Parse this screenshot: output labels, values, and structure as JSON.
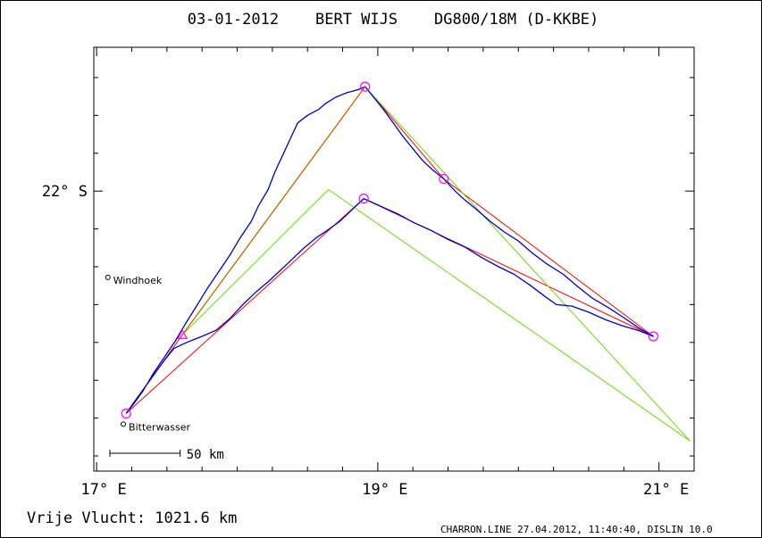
{
  "header": {
    "title": "03-01-2012    BERT WIJS    DG800/18M (D-KKBE)"
  },
  "footer": {
    "distance": "Vrije Vlucht: 1021.6 km",
    "credit": "CHARRON.LINE 27.04.2012, 11:40:40, DISLIN 10.0"
  },
  "colors": {
    "track": "#0000cc",
    "flight_legs": "#ff0000",
    "task_legs": "#66dd00",
    "turnpoints": "#ff00ff",
    "outbound_leg": "#cc6600"
  },
  "chart_data": {
    "type": "line",
    "title": "03-01-2012    BERT WIJS    DG800/18M (D-KKBE)",
    "xlabel": "",
    "ylabel": "",
    "xlim": [
      16.98,
      21.25
    ],
    "ylim": [
      -23.85,
      -21.05
    ],
    "grid": false,
    "x_ticks": [
      {
        "value": 17,
        "label": "17° E"
      },
      {
        "value": 19,
        "label": "19° E"
      },
      {
        "value": 21,
        "label": "21° E"
      }
    ],
    "y_ticks": [
      {
        "value": -22,
        "label": "22° S"
      }
    ],
    "places": [
      {
        "name": "Windhoek",
        "x": 17.08,
        "y": -22.57
      },
      {
        "name": "Bitterwasser",
        "x": 17.19,
        "y": -23.54
      }
    ],
    "scale_bar": {
      "label": "50 km",
      "length_x": 0.5
    },
    "turnpoints": [
      {
        "x": 17.21,
        "y": -23.47
      },
      {
        "x": 17.61,
        "y": -22.95
      },
      {
        "x": 18.91,
        "y": -21.31
      },
      {
        "x": 19.47,
        "y": -21.92
      },
      {
        "x": 20.96,
        "y": -22.96
      },
      {
        "x": 18.9,
        "y": -22.05
      }
    ],
    "series": [
      {
        "role": "flight legs",
        "points": [
          [
            17.21,
            -23.47
          ],
          [
            17.61,
            -22.95
          ],
          [
            18.91,
            -21.31
          ],
          [
            19.47,
            -21.92
          ],
          [
            20.96,
            -22.96
          ],
          [
            18.9,
            -22.05
          ],
          [
            17.21,
            -23.47
          ]
        ]
      },
      {
        "role": "task legs",
        "points": [
          [
            17.61,
            -22.95
          ],
          [
            18.65,
            -21.99
          ],
          [
            21.22,
            -23.65
          ],
          [
            18.91,
            -21.31
          ],
          [
            17.61,
            -22.95
          ]
        ]
      },
      {
        "role": "track",
        "points": [
          [
            17.21,
            -23.47
          ],
          [
            17.26,
            -23.41
          ],
          [
            17.33,
            -23.32
          ],
          [
            17.4,
            -23.21
          ],
          [
            17.48,
            -23.1
          ],
          [
            17.56,
            -22.99
          ],
          [
            17.63,
            -22.88
          ],
          [
            17.71,
            -22.76
          ],
          [
            17.79,
            -22.64
          ],
          [
            17.87,
            -22.53
          ],
          [
            17.95,
            -22.42
          ],
          [
            18.02,
            -22.31
          ],
          [
            18.1,
            -22.2
          ],
          [
            18.15,
            -22.1
          ],
          [
            18.22,
            -21.99
          ],
          [
            18.27,
            -21.87
          ],
          [
            18.33,
            -21.75
          ],
          [
            18.39,
            -21.63
          ],
          [
            18.43,
            -21.55
          ],
          [
            18.5,
            -21.5
          ],
          [
            18.58,
            -21.46
          ],
          [
            18.63,
            -21.42
          ],
          [
            18.7,
            -21.38
          ],
          [
            18.78,
            -21.35
          ],
          [
            18.86,
            -21.33
          ],
          [
            18.91,
            -21.31
          ],
          [
            18.97,
            -21.38
          ],
          [
            19.04,
            -21.46
          ],
          [
            19.11,
            -21.55
          ],
          [
            19.18,
            -21.64
          ],
          [
            19.25,
            -21.72
          ],
          [
            19.32,
            -21.8
          ],
          [
            19.39,
            -21.86
          ],
          [
            19.47,
            -21.92
          ],
          [
            19.55,
            -22.0
          ],
          [
            19.62,
            -22.06
          ],
          [
            19.7,
            -22.12
          ],
          [
            19.8,
            -22.2
          ],
          [
            19.9,
            -22.27
          ],
          [
            20.0,
            -22.33
          ],
          [
            20.1,
            -22.41
          ],
          [
            20.2,
            -22.48
          ],
          [
            20.32,
            -22.55
          ],
          [
            20.42,
            -22.63
          ],
          [
            20.53,
            -22.71
          ],
          [
            20.64,
            -22.77
          ],
          [
            20.74,
            -22.83
          ],
          [
            20.85,
            -22.9
          ],
          [
            20.96,
            -22.96
          ],
          [
            20.85,
            -22.92
          ],
          [
            20.74,
            -22.89
          ],
          [
            20.62,
            -22.85
          ],
          [
            20.5,
            -22.8
          ],
          [
            20.38,
            -22.76
          ],
          [
            20.27,
            -22.75
          ],
          [
            20.18,
            -22.69
          ],
          [
            20.08,
            -22.62
          ],
          [
            19.97,
            -22.55
          ],
          [
            19.86,
            -22.5
          ],
          [
            19.74,
            -22.44
          ],
          [
            19.62,
            -22.37
          ],
          [
            19.5,
            -22.32
          ],
          [
            19.38,
            -22.26
          ],
          [
            19.26,
            -22.21
          ],
          [
            19.14,
            -22.15
          ],
          [
            19.02,
            -22.1
          ],
          [
            18.9,
            -22.05
          ],
          [
            18.82,
            -22.12
          ],
          [
            18.73,
            -22.2
          ],
          [
            18.64,
            -22.26
          ],
          [
            18.56,
            -22.31
          ],
          [
            18.47,
            -22.38
          ],
          [
            18.38,
            -22.46
          ],
          [
            18.3,
            -22.53
          ],
          [
            18.22,
            -22.6
          ],
          [
            18.13,
            -22.67
          ],
          [
            18.04,
            -22.75
          ],
          [
            17.95,
            -22.84
          ],
          [
            17.85,
            -22.92
          ],
          [
            17.75,
            -22.96
          ],
          [
            17.64,
            -23.0
          ],
          [
            17.55,
            -23.04
          ],
          [
            17.48,
            -23.12
          ],
          [
            17.41,
            -23.21
          ],
          [
            17.34,
            -23.3
          ],
          [
            17.27,
            -23.39
          ],
          [
            17.21,
            -23.47
          ]
        ]
      }
    ]
  }
}
